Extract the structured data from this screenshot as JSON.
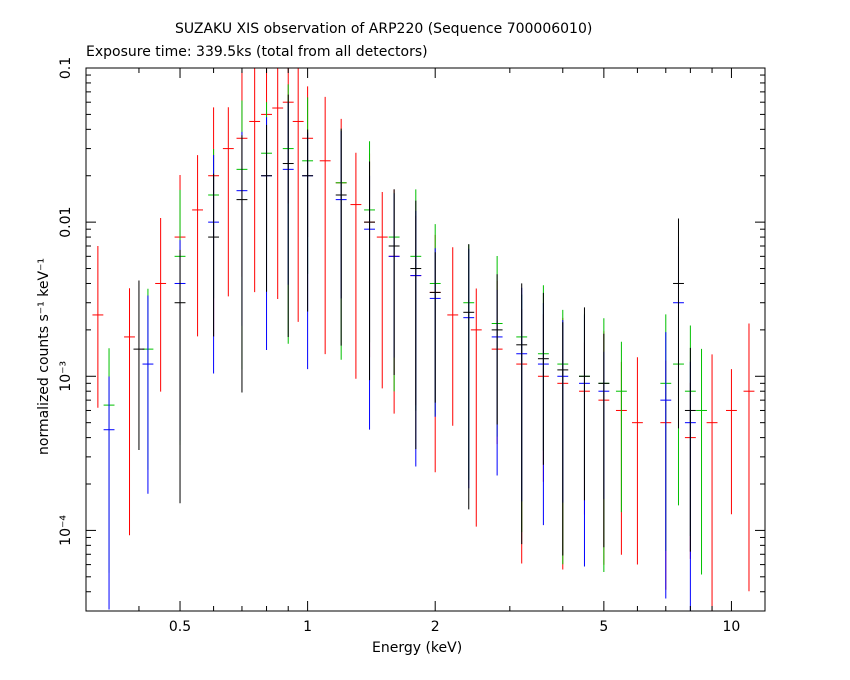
{
  "chart_data": {
    "type": "scatter",
    "title": "SUZAKU XIS observation of ARP220 (Sequence 700006010)",
    "subtitle": "Exposure time: 339.5ks (total from all detectors)",
    "xlabel": "Energy (keV)",
    "ylabel": "normalized counts s⁻¹ keV⁻¹",
    "xscale": "log",
    "yscale": "log",
    "xlim": [
      0.3,
      12
    ],
    "ylim": [
      3e-05,
      0.1
    ],
    "x_ticks": [
      {
        "value": 0.5,
        "label": "0.5"
      },
      {
        "value": 1,
        "label": "1"
      },
      {
        "value": 2,
        "label": "2"
      },
      {
        "value": 5,
        "label": "5"
      },
      {
        "value": 10,
        "label": "10"
      }
    ],
    "y_ticks": [
      {
        "value": 0.1,
        "label": "0.1"
      },
      {
        "value": 0.01,
        "label": "0.01"
      },
      {
        "value": 0.001,
        "label": "10⁻³"
      },
      {
        "value": 0.0001,
        "label": "10⁻⁴"
      }
    ],
    "series": [
      {
        "color": "#ff0000",
        "x": [
          0.32,
          0.38,
          0.45,
          0.5,
          0.55,
          0.6,
          0.65,
          0.7,
          0.75,
          0.8,
          0.85,
          0.9,
          0.95,
          1.0,
          1.1,
          1.2,
          1.3,
          1.4,
          1.5,
          1.6,
          1.8,
          2.0,
          2.2,
          2.5,
          2.8,
          3.2,
          3.6,
          4.0,
          4.5,
          5.0,
          5.5,
          6.0,
          7.0,
          8.0,
          9.0,
          10.0,
          11.0
        ],
        "y": [
          0.0025,
          0.0018,
          0.004,
          0.008,
          0.012,
          0.02,
          0.03,
          0.035,
          0.045,
          0.05,
          0.055,
          0.06,
          0.045,
          0.035,
          0.025,
          0.018,
          0.013,
          0.01,
          0.008,
          0.006,
          0.0045,
          0.0035,
          0.0025,
          0.002,
          0.0015,
          0.0012,
          0.001,
          0.0009,
          0.0008,
          0.0007,
          0.0006,
          0.0005,
          0.0005,
          0.0004,
          0.0005,
          0.0006,
          0.0008
        ]
      },
      {
        "color": "#00c000",
        "x": [
          0.34,
          0.42,
          0.5,
          0.6,
          0.7,
          0.8,
          0.9,
          1.0,
          1.2,
          1.4,
          1.6,
          1.8,
          2.0,
          2.4,
          2.8,
          3.2,
          3.6,
          4.0,
          4.5,
          5.0,
          5.5,
          7.0,
          7.5,
          8.0,
          8.5
        ],
        "y": [
          0.00065,
          0.0015,
          0.006,
          0.015,
          0.022,
          0.028,
          0.03,
          0.025,
          0.018,
          0.012,
          0.008,
          0.006,
          0.004,
          0.003,
          0.0022,
          0.0018,
          0.0014,
          0.0012,
          0.001,
          0.0009,
          0.0008,
          0.0009,
          0.0012,
          0.0008,
          0.0006
        ]
      },
      {
        "color": "#0000ff",
        "x": [
          0.34,
          0.42,
          0.5,
          0.6,
          0.7,
          0.8,
          0.9,
          1.0,
          1.2,
          1.4,
          1.6,
          1.8,
          2.0,
          2.4,
          2.8,
          3.2,
          3.6,
          4.0,
          4.5,
          5.0,
          7.0,
          7.5,
          8.0
        ],
        "y": [
          0.00045,
          0.0012,
          0.004,
          0.01,
          0.016,
          0.02,
          0.022,
          0.02,
          0.014,
          0.009,
          0.006,
          0.0045,
          0.0032,
          0.0024,
          0.0018,
          0.0014,
          0.0012,
          0.001,
          0.0009,
          0.0008,
          0.0007,
          0.003,
          0.0005
        ]
      },
      {
        "color": "#000000",
        "x": [
          0.4,
          0.5,
          0.6,
          0.7,
          0.8,
          0.9,
          1.0,
          1.2,
          1.4,
          1.6,
          1.8,
          2.0,
          2.4,
          2.8,
          3.2,
          3.6,
          4.0,
          4.5,
          5.0,
          7.5,
          8.0
        ],
        "y": [
          0.0015,
          0.003,
          0.008,
          0.014,
          0.02,
          0.024,
          0.02,
          0.015,
          0.01,
          0.007,
          0.005,
          0.0035,
          0.0026,
          0.002,
          0.0016,
          0.0013,
          0.0011,
          0.001,
          0.0009,
          0.004,
          0.0006
        ]
      }
    ]
  }
}
